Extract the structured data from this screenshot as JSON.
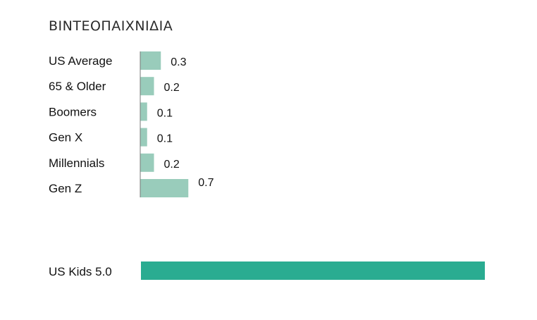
{
  "title": "ΒΙΝΤΕΟΠΑΙΧΝΙΔΙΑ",
  "colors": {
    "generation_bar": "#99ccbb",
    "kids_bar": "#2aac91",
    "axis": "#777777"
  },
  "chart_data": {
    "type": "bar",
    "orientation": "horizontal",
    "title": "ΒΙΝΤΕΟΠΑΙΧΝΙΔΙΑ",
    "categories": [
      "US Average",
      "65 & Older",
      "Boomers",
      "Gen X",
      "Millennials",
      "Gen Z"
    ],
    "values": [
      0.3,
      0.2,
      0.1,
      0.1,
      0.2,
      0.7
    ],
    "value_labels": [
      "0.3",
      "0.2",
      "0.1",
      "0.1",
      "0.2",
      "0.7"
    ],
    "highlight": {
      "label": "US Kids 5.0",
      "value": 5.0
    },
    "grid": false,
    "legend": "none"
  }
}
